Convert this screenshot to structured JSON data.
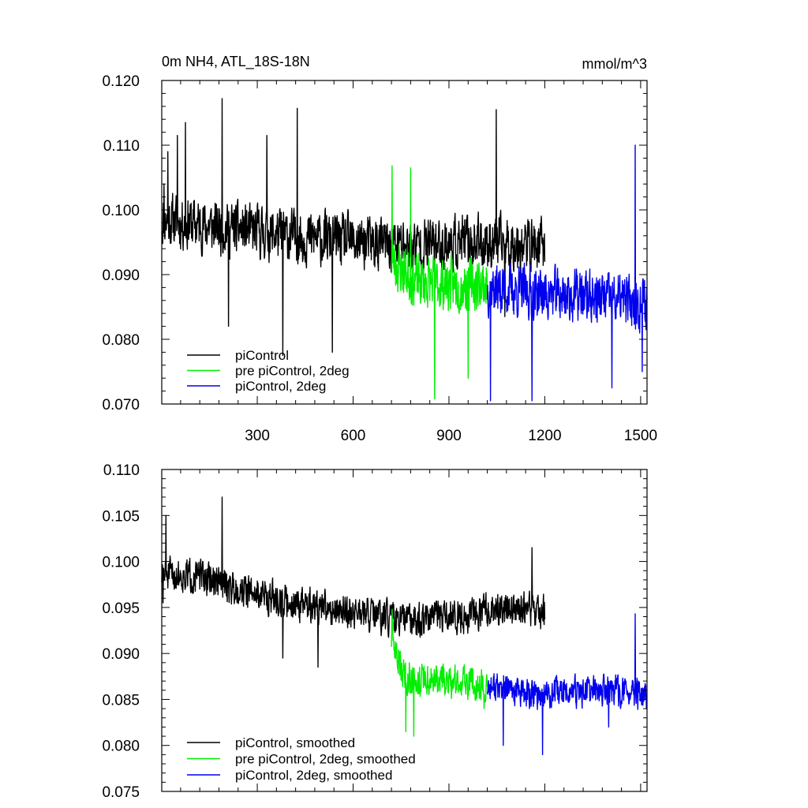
{
  "chart_data": [
    {
      "type": "line",
      "title": "0m NH4, ATL_18S-18N",
      "units": "mmol/m^3",
      "xlim": [
        1,
        1520
      ],
      "ylim": [
        0.07,
        0.12
      ],
      "x_ticks": [
        300,
        600,
        900,
        1200,
        1500
      ],
      "x_tick_labels": [
        "300",
        "600",
        "900",
        "1200",
        "1500"
      ],
      "y_ticks": [
        0.07,
        0.08,
        0.09,
        0.1,
        0.11,
        0.12
      ],
      "y_tick_labels": [
        "0.070",
        "0.080",
        "0.090",
        "0.100",
        "0.110",
        "0.120"
      ],
      "grid": false,
      "legend_position": "bottom-left",
      "series": [
        {
          "name": "piControl",
          "color": "#000000",
          "x_start": 1,
          "x_end": 1200,
          "noisy": true,
          "amplitude": 0.0055,
          "seed": 11,
          "trend": [
            [
              1,
              0.0985
            ],
            [
              150,
              0.0975
            ],
            [
              400,
              0.096
            ],
            [
              600,
              0.095
            ],
            [
              750,
              0.0945
            ],
            [
              1000,
              0.095
            ],
            [
              1200,
              0.0945
            ]
          ],
          "extremes": [
            [
              8,
              0.104
            ],
            [
              20,
              0.109
            ],
            [
              50,
              0.1115
            ],
            [
              75,
              0.1135
            ],
            [
              190,
              0.1172
            ],
            [
              210,
              0.082
            ],
            [
              330,
              0.1115
            ],
            [
              380,
              0.0775
            ],
            [
              425,
              0.1157
            ],
            [
              535,
              0.078
            ],
            [
              1048,
              0.1155
            ],
            [
              1075,
              0.0835
            ]
          ]
        },
        {
          "name": "pre piControl, 2deg",
          "color": "#00ee00",
          "x_start": 720,
          "x_end": 1020,
          "noisy": true,
          "amplitude": 0.0055,
          "seed": 23,
          "trend": [
            [
              720,
              0.092
            ],
            [
              800,
              0.089
            ],
            [
              900,
              0.0885
            ],
            [
              1020,
              0.0885
            ]
          ],
          "extremes": [
            [
              722,
              0.1068
            ],
            [
              780,
              0.1065
            ],
            [
              855,
              0.0708
            ],
            [
              960,
              0.074
            ]
          ]
        },
        {
          "name": "piControl, 2deg",
          "color": "#0000ee",
          "x_start": 1020,
          "x_end": 1520,
          "noisy": true,
          "amplitude": 0.0055,
          "seed": 37,
          "trend": [
            [
              1020,
              0.088
            ],
            [
              1200,
              0.087
            ],
            [
              1350,
              0.0865
            ],
            [
              1520,
              0.0855
            ]
          ],
          "extremes": [
            [
              1030,
              0.0705
            ],
            [
              1160,
              0.0705
            ],
            [
              1410,
              0.0725
            ],
            [
              1483,
              0.11
            ],
            [
              1505,
              0.075
            ]
          ]
        }
      ]
    },
    {
      "type": "line",
      "xlim": [
        1,
        1520
      ],
      "ylim": [
        0.075,
        0.11
      ],
      "x_ticks": [
        300,
        600,
        900,
        1200,
        1500
      ],
      "y_ticks": [
        0.075,
        0.08,
        0.085,
        0.09,
        0.095,
        0.1,
        0.105,
        0.11
      ],
      "y_tick_labels": [
        "0.075",
        "0.080",
        "0.085",
        "0.090",
        "0.095",
        "0.100",
        "0.105",
        "0.110"
      ],
      "grid": false,
      "legend_position": "bottom-left",
      "series": [
        {
          "name": "piControl, smoothed",
          "color": "#000000",
          "x_start": 1,
          "x_end": 1200,
          "noisy": true,
          "amplitude": 0.0025,
          "seed": 51,
          "trend": [
            [
              1,
              0.0985
            ],
            [
              100,
              0.0985
            ],
            [
              250,
              0.097
            ],
            [
              400,
              0.0955
            ],
            [
              600,
              0.0945
            ],
            [
              750,
              0.0935
            ],
            [
              900,
              0.094
            ],
            [
              1100,
              0.095
            ],
            [
              1200,
              0.0945
            ]
          ],
          "extremes": [
            [
              5,
              0.0955
            ],
            [
              14,
              0.105
            ],
            [
              190,
              0.107
            ],
            [
              380,
              0.0895
            ],
            [
              490,
              0.0885
            ],
            [
              1160,
              0.1015
            ]
          ]
        },
        {
          "name": "pre piControl, 2deg, smoothed",
          "color": "#00ee00",
          "x_start": 720,
          "x_end": 1020,
          "noisy": true,
          "amplitude": 0.0025,
          "seed": 63,
          "trend": [
            [
              720,
              0.0915
            ],
            [
              760,
              0.0875
            ],
            [
              850,
              0.087
            ],
            [
              950,
              0.087
            ],
            [
              1020,
              0.0865
            ]
          ],
          "extremes": [
            [
              722,
              0.0948
            ],
            [
              765,
              0.0815
            ],
            [
              790,
              0.081
            ],
            [
              1010,
              0.084
            ]
          ]
        },
        {
          "name": "piControl, 2deg, smoothed",
          "color": "#0000ee",
          "x_start": 1020,
          "x_end": 1520,
          "noisy": true,
          "amplitude": 0.0022,
          "seed": 77,
          "trend": [
            [
              1020,
              0.0865
            ],
            [
              1150,
              0.0855
            ],
            [
              1300,
              0.0858
            ],
            [
              1420,
              0.086
            ],
            [
              1520,
              0.0852
            ]
          ],
          "extremes": [
            [
              1070,
              0.08
            ],
            [
              1193,
              0.079
            ],
            [
              1400,
              0.082
            ],
            [
              1483,
              0.0943
            ]
          ]
        }
      ]
    }
  ]
}
